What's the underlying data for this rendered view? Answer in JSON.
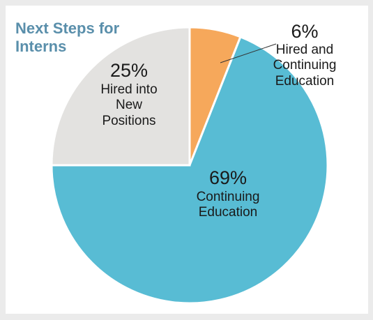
{
  "chart_data": {
    "type": "pie",
    "title": "Next Steps for Interns",
    "categories": [
      "Hired and Continuing Education",
      "Continuing Education",
      "Hired into New Positions"
    ],
    "values": [
      6,
      69,
      25
    ],
    "value_labels": [
      "6%",
      "69%",
      "25%"
    ],
    "colors": [
      "#f6a85b",
      "#58bcd4",
      "#e3e2e0"
    ]
  }
}
